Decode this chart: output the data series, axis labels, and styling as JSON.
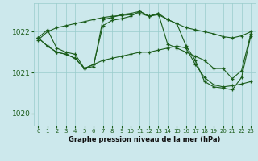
{
  "xlabel": "Graphe pression niveau de la mer (hPa)",
  "xlim": [
    -0.5,
    23.5
  ],
  "ylim": [
    1019.7,
    1022.7
  ],
  "yticks": [
    1020,
    1021,
    1022
  ],
  "xticks": [
    0,
    1,
    2,
    3,
    4,
    5,
    6,
    7,
    8,
    9,
    10,
    11,
    12,
    13,
    14,
    15,
    16,
    17,
    18,
    19,
    20,
    21,
    22,
    23
  ],
  "background_color": "#cce8ec",
  "grid_color": "#99cccc",
  "line_color": "#1a5c1a",
  "series": [
    {
      "x": [
        0,
        1,
        2,
        3,
        4,
        5,
        6,
        7,
        8,
        9,
        10,
        11,
        12,
        13,
        14,
        15,
        16,
        17,
        18,
        19,
        20,
        21,
        22,
        23
      ],
      "y": [
        1021.8,
        1022.0,
        1022.1,
        1022.15,
        1022.2,
        1022.25,
        1022.3,
        1022.35,
        1022.38,
        1022.4,
        1022.42,
        1022.45,
        1022.38,
        1022.45,
        1022.3,
        1022.2,
        1022.1,
        1022.05,
        1022.0,
        1021.95,
        1021.88,
        1021.85,
        1021.9,
        1022.0
      ]
    },
    {
      "x": [
        0,
        1,
        2,
        3,
        4,
        5,
        6,
        7,
        8,
        9,
        10,
        11,
        12,
        13,
        14,
        15,
        16,
        17,
        18,
        19,
        20,
        21,
        22,
        23
      ],
      "y": [
        1021.85,
        1022.05,
        1021.6,
        1021.5,
        1021.45,
        1021.1,
        1021.15,
        1022.3,
        1022.35,
        1022.42,
        1022.45,
        1022.5,
        1022.38,
        1022.45,
        1021.7,
        1021.6,
        1021.5,
        1021.4,
        1021.3,
        1021.1,
        1021.1,
        1020.85,
        1021.05,
        1021.95
      ]
    },
    {
      "x": [
        0,
        1,
        2,
        3,
        4,
        5,
        6,
        7,
        8,
        9,
        10,
        11,
        12,
        13,
        14,
        15,
        16,
        17,
        18,
        19,
        20,
        21,
        22,
        23
      ],
      "y": [
        1021.85,
        1021.65,
        1021.5,
        1021.45,
        1021.35,
        1021.1,
        1021.2,
        1021.3,
        1021.35,
        1021.4,
        1021.45,
        1021.5,
        1021.5,
        1021.55,
        1021.6,
        1021.65,
        1021.6,
        1021.2,
        1020.88,
        1020.7,
        1020.65,
        1020.68,
        1020.72,
        1020.78
      ]
    },
    {
      "x": [
        0,
        1,
        2,
        3,
        4,
        5,
        6,
        7,
        8,
        9,
        10,
        11,
        12,
        13,
        14,
        15,
        16,
        17,
        18,
        19,
        20,
        21,
        22,
        23
      ],
      "y": [
        1021.85,
        1021.65,
        1021.5,
        1021.45,
        1021.35,
        1021.1,
        1021.2,
        1022.15,
        1022.28,
        1022.32,
        1022.38,
        1022.5,
        1022.38,
        1022.42,
        1022.3,
        1022.2,
        1021.65,
        1021.3,
        1020.78,
        1020.65,
        1020.62,
        1020.58,
        1020.88,
        1021.9
      ]
    }
  ]
}
